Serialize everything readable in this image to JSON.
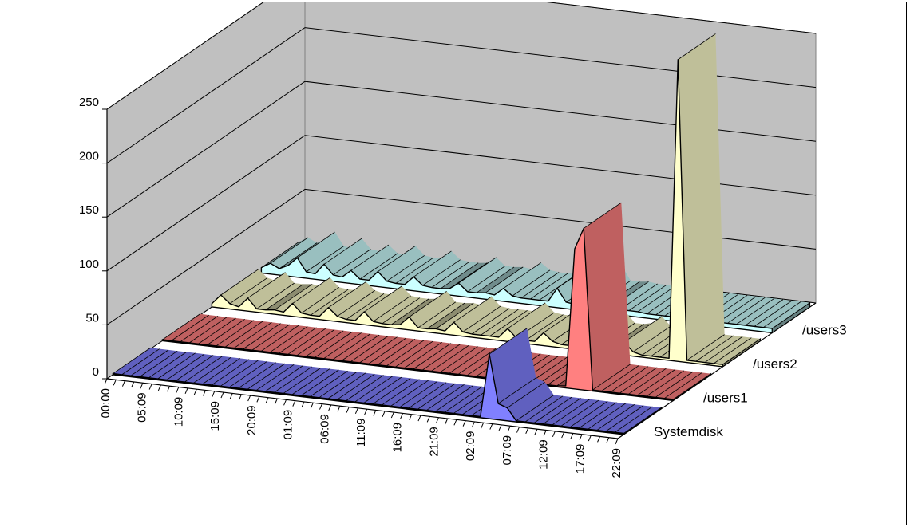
{
  "chart_data": {
    "type": "area",
    "subtype": "3d-area",
    "title": "",
    "xlabel": "",
    "ylabel": "",
    "ylim": [
      0,
      250
    ],
    "y_ticks": [
      "0",
      "50",
      "100",
      "150",
      "200",
      "250"
    ],
    "x_tick_labels": [
      "00:00",
      "05:09",
      "10:09",
      "15:09",
      "20:09",
      "01:09",
      "06:09",
      "11:09",
      "16:09",
      "21:09",
      "02:09",
      "07:09",
      "12:09",
      "17:09",
      "22:09"
    ],
    "point_count": 58,
    "grid": true,
    "legend": "none",
    "series": [
      {
        "name": "Systemdisk",
        "color": "#8080ff",
        "values": [
          1,
          1,
          1,
          1,
          1,
          1,
          1,
          1,
          1,
          1,
          1,
          1,
          1,
          1,
          1,
          1,
          1,
          1,
          1,
          1,
          1,
          1,
          1,
          1,
          1,
          1,
          1,
          1,
          1,
          1,
          1,
          1,
          1,
          1,
          1,
          1,
          1,
          1,
          1,
          1,
          1,
          1,
          60,
          15,
          12,
          1,
          1,
          1,
          1,
          1,
          1,
          1,
          1,
          1,
          1,
          1,
          1,
          1
        ]
      },
      {
        "name": "/users1",
        "color": "#ff8080",
        "values": [
          1,
          1,
          1,
          1,
          1,
          1,
          1,
          1,
          1,
          1,
          1,
          1,
          1,
          1,
          1,
          1,
          1,
          1,
          1,
          1,
          1,
          1,
          1,
          1,
          1,
          1,
          1,
          1,
          1,
          1,
          1,
          1,
          1,
          1,
          1,
          1,
          1,
          1,
          1,
          1,
          1,
          1,
          1,
          1,
          1,
          2,
          130,
          150,
          1,
          1,
          1,
          1,
          1,
          1,
          1,
          1,
          1,
          1
        ]
      },
      {
        "name": "/users2",
        "color": "#ffffcc",
        "values": [
          3,
          12,
          5,
          3,
          12,
          3,
          3,
          4,
          3,
          12,
          4,
          3,
          3,
          12,
          5,
          3,
          3,
          12,
          4,
          3,
          3,
          4,
          12,
          3,
          3,
          4,
          3,
          12,
          4,
          3,
          3,
          3,
          3,
          12,
          4,
          3,
          3,
          12,
          5,
          3,
          3,
          4,
          12,
          3,
          3,
          5,
          12,
          4,
          2,
          2,
          2,
          2,
          280,
          2,
          2,
          2,
          2,
          2
        ]
      },
      {
        "name": "/users3",
        "color": "#ccffff",
        "values": [
          5,
          10,
          6,
          10,
          18,
          6,
          5,
          15,
          6,
          5,
          12,
          5,
          5,
          14,
          6,
          5,
          5,
          13,
          6,
          5,
          5,
          6,
          12,
          5,
          5,
          6,
          5,
          12,
          6,
          5,
          5,
          5,
          5,
          18,
          6,
          5,
          18,
          5,
          5,
          6,
          5,
          5,
          5,
          4,
          4,
          4,
          4,
          4,
          4,
          4,
          4,
          4,
          4,
          4,
          4,
          4,
          4,
          4
        ]
      }
    ]
  }
}
